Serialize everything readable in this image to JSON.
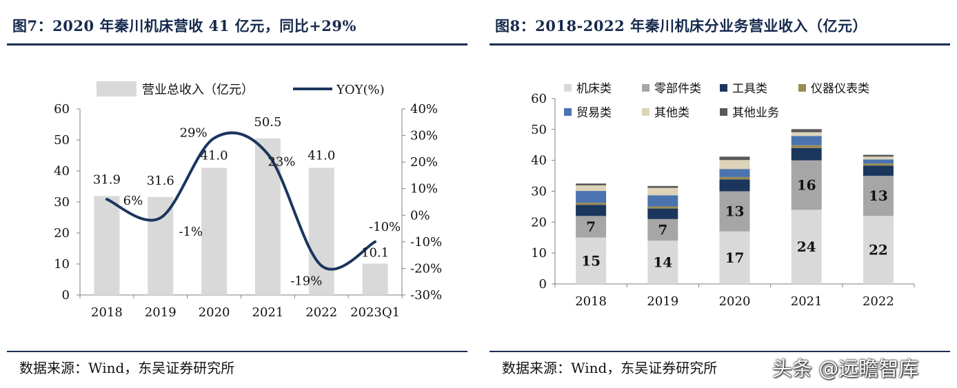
{
  "figure7": {
    "title": "图7：2020 年秦川机床营收 41 亿元，同比+29%",
    "source": "数据来源：Wind，东吴证券研究所",
    "chart_data": {
      "type": "bar",
      "categories": [
        "2018",
        "2019",
        "2020",
        "2021",
        "2022",
        "2023Q1"
      ],
      "series": [
        {
          "name": "营业总收入（亿元）",
          "type": "bar",
          "axis": "left",
          "values": [
            31.9,
            31.6,
            41.0,
            50.5,
            41.0,
            10.1
          ],
          "labels": [
            "31.9",
            "31.6",
            "41.0",
            "50.5",
            "41.0",
            "10.1"
          ]
        },
        {
          "name": "YOY(%)",
          "type": "line",
          "axis": "right",
          "values": [
            6,
            -1,
            29,
            23,
            -19,
            -10
          ],
          "labels": [
            "6%",
            "-1%",
            "29%",
            "23%",
            "-19%",
            "-10%"
          ]
        }
      ],
      "ylim": [
        0,
        60
      ],
      "yticks": [
        "0",
        "10",
        "20",
        "30",
        "40",
        "50",
        "60"
      ],
      "y2lim": [
        -30,
        40
      ],
      "y2ticks": [
        "-30%",
        "-20%",
        "-10%",
        "0%",
        "10%",
        "20%",
        "30%",
        "40%"
      ],
      "legend": "top",
      "grid": false,
      "colors": {
        "bar": "#d9d9d9",
        "line": "#1b365d"
      }
    }
  },
  "figure8": {
    "title": "图8：2018-2022 年秦川机床分业务营业收入（亿元）",
    "source": "数据来源：Wind，东吴证券研究所",
    "chart_data": {
      "type": "bar",
      "stacked": true,
      "categories": [
        "2018",
        "2019",
        "2020",
        "2021",
        "2022"
      ],
      "series": [
        {
          "name": "机床类",
          "color": "#d9d9d9",
          "values": [
            15,
            14,
            17,
            24,
            22
          ],
          "labels": [
            "15",
            "14",
            "17",
            "24",
            "22"
          ]
        },
        {
          "name": "零部件类",
          "color": "#a6a6a6",
          "values": [
            7,
            7,
            13,
            16,
            13
          ],
          "labels": [
            "7",
            "7",
            "13",
            "16",
            "13"
          ]
        },
        {
          "name": "工具类",
          "color": "#1b365d",
          "values": [
            3.6,
            3.4,
            3.8,
            4.0,
            3.3
          ]
        },
        {
          "name": "仪器仪表类",
          "color": "#9a8b54",
          "values": [
            0.7,
            0.7,
            0.8,
            0.9,
            0.7
          ]
        },
        {
          "name": "贸易类",
          "color": "#4a73b0",
          "values": [
            3.8,
            3.6,
            2.6,
            3.0,
            1.3
          ]
        },
        {
          "name": "其他类",
          "color": "#ddd4b8",
          "values": [
            1.8,
            2.4,
            2.9,
            1.2,
            0.9
          ]
        },
        {
          "name": "其他业务",
          "color": "#595959",
          "values": [
            0.6,
            0.6,
            1.1,
            1.0,
            0.6
          ]
        }
      ],
      "ylim": [
        0,
        60
      ],
      "yticks": [
        "0",
        "10",
        "20",
        "30",
        "40",
        "50",
        "60"
      ],
      "legend": "top",
      "grid": false
    }
  },
  "watermark": "头条 @远瞻智库"
}
